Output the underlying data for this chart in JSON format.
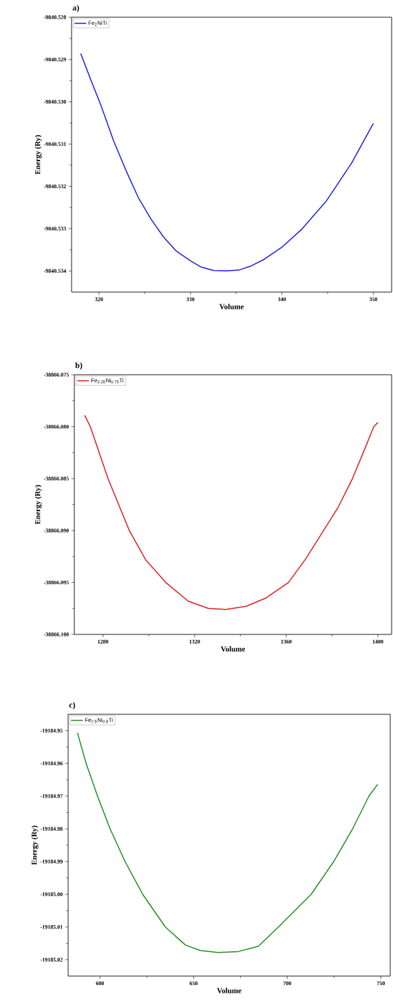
{
  "chart_data": [
    {
      "type": "line",
      "title": "a)",
      "xlabel": "Volume",
      "ylabel": "Energy (Ry)",
      "legend": "top left",
      "marker": "none",
      "line_style": "solid",
      "xlim": [
        317,
        352
      ],
      "xticks": [
        320,
        330,
        340,
        350
      ],
      "ylim": [
        -9840.5345,
        -9840.528
      ],
      "yticks": [
        -9840.528,
        -9840.529,
        {
          "value": -9840.53,
          "label": "-9840.530"
        },
        -9840.531,
        -9840.532,
        -9840.533,
        -9840.534
      ],
      "series": [
        {
          "name": "Fe$_{2}$NiTi",
          "color": "#1a1ae6",
          "x": [
            318.0,
            319.12,
            320.22,
            321.59,
            322.96,
            324.33,
            325.7,
            327.07,
            328.44,
            330.0,
            331.18,
            332.55,
            333.92,
            335.29,
            336.66,
            338.03,
            340.0,
            342.14,
            344.88,
            347.62,
            350.0
          ],
          "values": [
            -9840.52886,
            -9840.52949,
            -9840.53009,
            -9840.53092,
            -9840.53163,
            -9840.53228,
            -9840.53278,
            -9840.5332,
            -9840.53353,
            -9840.53376,
            -9840.53391,
            -9840.53399,
            -9840.534,
            -9840.53398,
            -9840.53388,
            -9840.53373,
            -9840.53344,
            -9840.53302,
            -9840.53234,
            -9840.53145,
            -9840.53051
          ]
        }
      ]
    },
    {
      "type": "line",
      "title": "b)",
      "xlabel": "Volume",
      "ylabel": "Energy (Ry)",
      "legend": "top left",
      "marker": "none",
      "line_style": "solid",
      "xlim": [
        1267.5,
        1406
      ],
      "xticks": [
        1280,
        1320,
        1360,
        1400
      ],
      "ylim": [
        -38866.1,
        -38866.075
      ],
      "yticks": [
        {
          "value": -38866.1,
          "label": "-38866.100"
        },
        -38866.095,
        {
          "value": -38866.09,
          "label": "-38866.090"
        },
        -38866.085,
        {
          "value": -38866.08,
          "label": "-38866.080"
        },
        -38866.075
      ],
      "series": [
        {
          "name": "Fe$_{2.25}$Ni$_{0.75}$Ti",
          "color": "#e01b1b",
          "x": [
            1272.0,
            1274.5,
            1282.2,
            1291.5,
            1298.6,
            1307.4,
            1317.2,
            1326.0,
            1333.6,
            1342.4,
            1351.1,
            1361.0,
            1368.6,
            1376.3,
            1382.8,
            1388.9,
            1393.8,
            1398.2,
            1400.0
          ],
          "values": [
            -38866.0789,
            -38866.08,
            -38866.085,
            -38866.09,
            -38866.0928,
            -38866.095,
            -38866.0968,
            -38866.0975,
            -38866.0976,
            -38866.0973,
            -38866.0965,
            -38866.095,
            -38866.0927,
            -38866.09,
            -38866.0877,
            -38866.085,
            -38866.0824,
            -38866.08,
            -38866.0796
          ]
        }
      ]
    },
    {
      "type": "line",
      "title": "c)",
      "xlabel": "Volume",
      "ylabel": "Energy (Ry)",
      "legend": "top left",
      "marker": "none",
      "line_style": "solid",
      "xlim": [
        583,
        755
      ],
      "xticks": [
        600,
        650,
        700,
        750
      ],
      "ylim": [
        -19185.025,
        -19184.945
      ],
      "yticks": [
        -19184.95,
        -19184.96,
        -19184.97,
        -19184.98,
        -19184.99,
        {
          "value": -19185.0,
          "label": "-19185.00"
        },
        -19185.01,
        -19185.02
      ],
      "series": [
        {
          "name": "Fe$_{2.5}$Ni$_{0.5}$Ti",
          "color": "#1e8c1e",
          "x": [
            588.0,
            592.6,
            598.7,
            605.4,
            613.4,
            622.8,
            634.9,
            645.6,
            653.7,
            663.1,
            673.8,
            684.6,
            695.3,
            712.8,
            724.8,
            734.9,
            743.6,
            748.3
          ],
          "values": [
            -19184.9507,
            -19184.96,
            -19184.97,
            -19184.98,
            -19184.99,
            -19185.0,
            -19185.01,
            -19185.0155,
            -19185.0172,
            -19185.0178,
            -19185.0175,
            -19185.0159,
            -19185.01,
            -19185.0,
            -19184.99,
            -19184.98,
            -19184.97,
            -19184.9664
          ]
        }
      ]
    }
  ]
}
